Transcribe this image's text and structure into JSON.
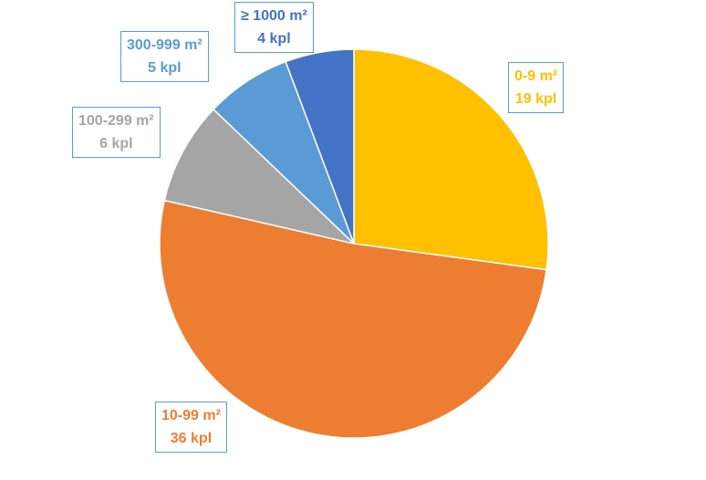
{
  "chart_data": {
    "type": "pie",
    "slices": [
      {
        "label": "0-9 m²",
        "value": 19,
        "value_label": "19 kpl",
        "color": "#ffc000"
      },
      {
        "label": "10-99 m²",
        "value": 36,
        "value_label": "36 kpl",
        "color": "#ed7d31"
      },
      {
        "label": "100-299 m²",
        "value": 6,
        "value_label": "6 kpl",
        "color": "#a5a5a5"
      },
      {
        "label": "300-999 m²",
        "value": 5,
        "value_label": "5 kpl",
        "color": "#5b9bd5"
      },
      {
        "label": "≥ 1000 m²",
        "value": 4,
        "value_label": "4 kpl",
        "color": "#4472c4"
      }
    ],
    "start_angle": "12 o'clock",
    "direction": "clockwise",
    "legend": "none",
    "data_labels": "callout boxes"
  }
}
